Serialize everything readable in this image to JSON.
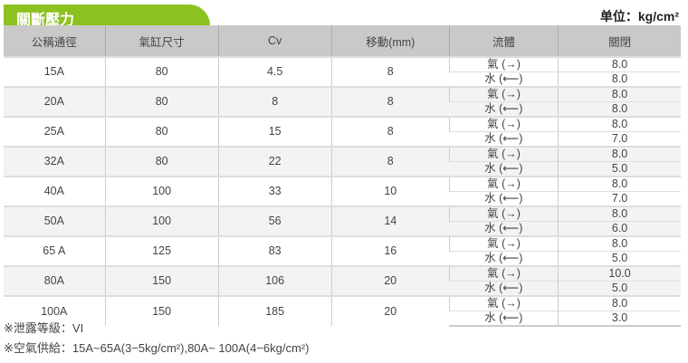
{
  "title": "關斷壓力",
  "unit": "单位：kg/cm²",
  "headers": [
    "公稱通徑",
    "氣缸尺寸",
    "Cv",
    "移動(mm)",
    "流體",
    "關閉"
  ],
  "fluids": [
    "氣 (→)",
    "水 (⟵)"
  ],
  "rows": [
    {
      "size": "15A",
      "cyl": "80",
      "cv": "4.5",
      "stroke": "8",
      "air": "8.0",
      "water": "8.0"
    },
    {
      "size": "20A",
      "cyl": "80",
      "cv": "8",
      "stroke": "8",
      "air": "8.0",
      "water": "8.0"
    },
    {
      "size": "25A",
      "cyl": "80",
      "cv": "15",
      "stroke": "8",
      "air": "8.0",
      "water": "7.0"
    },
    {
      "size": "32A",
      "cyl": "80",
      "cv": "22",
      "stroke": "8",
      "air": "8.0",
      "water": "5.0"
    },
    {
      "size": "40A",
      "cyl": "100",
      "cv": "33",
      "stroke": "10",
      "air": "8.0",
      "water": "7.0"
    },
    {
      "size": "50A",
      "cyl": "100",
      "cv": "56",
      "stroke": "14",
      "air": "8.0",
      "water": "6.0"
    },
    {
      "size": "65 A",
      "cyl": "125",
      "cv": "83",
      "stroke": "16",
      "air": "8.0",
      "water": "5.0"
    },
    {
      "size": "80A",
      "cyl": "150",
      "cv": "106",
      "stroke": "20",
      "air": "10.0",
      "water": "5.0"
    },
    {
      "size": "100A",
      "cyl": "150",
      "cv": "185",
      "stroke": "20",
      "air": "8.0",
      "water": "3.0"
    }
  ],
  "notes": [
    "※泄露等級：VI",
    "※空氣供給：15A~65A(3−5kg/cm²),80A~ 100A(4−6kg/cm²)"
  ],
  "colors": {
    "accent": "#8cc21f",
    "header_bg": "#c9c9ca"
  }
}
